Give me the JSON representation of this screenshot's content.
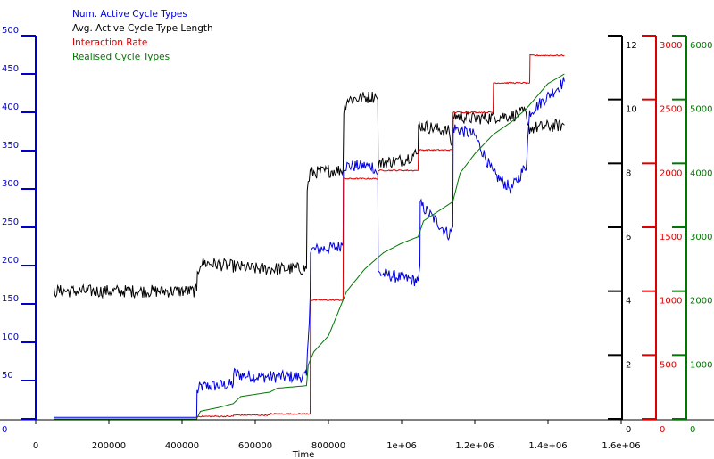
{
  "chart_data": {
    "type": "line",
    "xlabel": "Time",
    "xlim": [
      0,
      1600000
    ],
    "xticks": [
      "0",
      "200000",
      "400000",
      "600000",
      "800000",
      "1e+06",
      "1.2e+06",
      "1.4e+06",
      "1.6e+06"
    ],
    "xtick_values": [
      0,
      200000,
      400000,
      600000,
      800000,
      1000000,
      1200000,
      1400000,
      1600000
    ],
    "legend_placement": "top-left",
    "grid": false,
    "axes": [
      {
        "id": "blue",
        "side": "left",
        "color": "#0000cc",
        "ylim": [
          0,
          500
        ],
        "tick_step": 50,
        "labels": [
          "0",
          "50",
          "100",
          "150",
          "200",
          "250",
          "300",
          "350",
          "400",
          "450",
          "500"
        ]
      },
      {
        "id": "black",
        "side": "right",
        "color": "#000000",
        "ylim": [
          0,
          12
        ],
        "tick_step": 2,
        "labels": [
          "0",
          "2",
          "4",
          "6",
          "8",
          "10",
          "12"
        ]
      },
      {
        "id": "red",
        "side": "right",
        "color": "#dd0000",
        "ylim": [
          0,
          3000
        ],
        "tick_step": 500,
        "labels": [
          "0",
          "500",
          "1000",
          "1500",
          "2000",
          "2500",
          "3000"
        ]
      },
      {
        "id": "green",
        "side": "right",
        "color": "#007700",
        "ylim": [
          0,
          6000
        ],
        "tick_step": 1000,
        "labels": [
          "0",
          "1000",
          "2000",
          "3000",
          "4000",
          "5000",
          "6000"
        ]
      }
    ],
    "series": [
      {
        "name": "Num. Active Cycle Types",
        "axis": "blue",
        "color": "#0000dd",
        "noise": 8,
        "x": [
          50000,
          440000,
          441000,
          450000,
          540000,
          541000,
          550000,
          600000,
          740000,
          750000,
          751000,
          830000,
          840000,
          841000,
          920000,
          935000,
          936000,
          1045000,
          1050000,
          1051000,
          1130000,
          1140000,
          1141000,
          1200000,
          1250000,
          1300000,
          1340000,
          1350000,
          1445000
        ],
        "y": [
          2,
          2,
          35,
          42,
          45,
          60,
          58,
          55,
          55,
          160,
          220,
          225,
          230,
          330,
          330,
          320,
          190,
          180,
          200,
          280,
          240,
          250,
          380,
          370,
          320,
          300,
          330,
          400,
          440
        ]
      },
      {
        "name": "Avg. Active Cycle Type Length",
        "axis": "black",
        "color": "#000000",
        "noise": 0.2,
        "x": [
          50000,
          440000,
          442000,
          450000,
          600000,
          740000,
          742000,
          750000,
          840000,
          842000,
          850000,
          930000,
          935000,
          936000,
          1000000,
          1040000,
          1045000,
          1046000,
          1130000,
          1135000,
          1140000,
          1141000,
          1200000,
          1300000,
          1340000,
          1345000,
          1445000
        ],
        "y": [
          4.0,
          4.0,
          4.5,
          4.9,
          4.7,
          4.7,
          7.2,
          7.7,
          7.8,
          9.6,
          10.0,
          10.1,
          10.0,
          8.0,
          8.1,
          8.3,
          8.3,
          9.2,
          9.0,
          8.6,
          8.5,
          9.5,
          9.4,
          9.5,
          9.6,
          9.1,
          9.2
        ]
      },
      {
        "name": "Interaction Rate",
        "axis": "red",
        "color": "#dd0000",
        "noise": 5,
        "x": [
          50000,
          440000,
          441000,
          540000,
          541000,
          640000,
          641000,
          740000,
          750000,
          751000,
          830000,
          840000,
          841000,
          925000,
          935000,
          936000,
          1040000,
          1045000,
          1046000,
          1130000,
          1140000,
          1141000,
          1240000,
          1250000,
          1251000,
          1340000,
          1350000,
          1351000,
          1445000
        ],
        "y": [
          0,
          0,
          20,
          20,
          30,
          30,
          40,
          40,
          40,
          930,
          930,
          930,
          1880,
          1880,
          1880,
          1945,
          1945,
          1945,
          2105,
          2105,
          2105,
          2400,
          2400,
          2400,
          2630,
          2630,
          2630,
          2845,
          2845
        ]
      },
      {
        "name": "Realised Cycle Types",
        "axis": "green",
        "color": "#007700",
        "noise": 0,
        "x": [
          50000,
          440000,
          450000,
          500000,
          540000,
          560000,
          640000,
          660000,
          740000,
          745000,
          760000,
          800000,
          850000,
          900000,
          950000,
          1000000,
          1045000,
          1060000,
          1100000,
          1140000,
          1160000,
          1200000,
          1250000,
          1300000,
          1340000,
          1400000,
          1445000
        ],
        "y": [
          0,
          0,
          120,
          180,
          240,
          350,
          420,
          480,
          520,
          850,
          1050,
          1300,
          2000,
          2350,
          2600,
          2750,
          2850,
          3100,
          3250,
          3400,
          3850,
          4150,
          4450,
          4650,
          4850,
          5250,
          5400
        ]
      }
    ]
  }
}
